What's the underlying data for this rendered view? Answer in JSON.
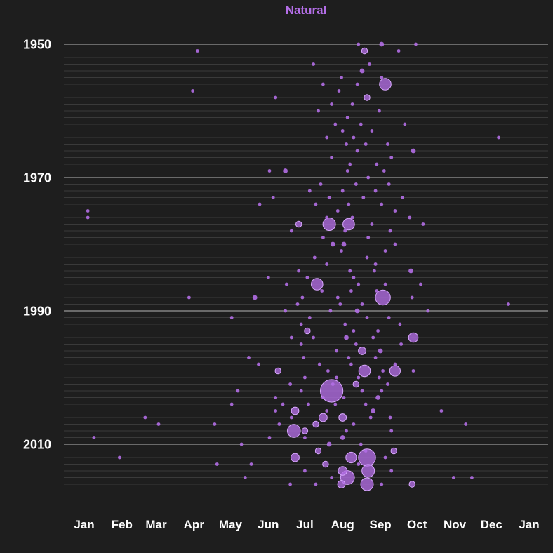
{
  "chart_data": {
    "type": "scatter",
    "title": "Natural",
    "xlabel": "",
    "ylabel": "",
    "x_axis": {
      "type": "day_of_year",
      "tick_labels": [
        "Jan",
        "Feb",
        "Mar",
        "Apr",
        "May",
        "Jun",
        "Jul",
        "Aug",
        "Sep",
        "Oct",
        "Nov",
        "Dec",
        "Jan"
      ],
      "range": [
        "Jan 1",
        "Jan 1 (next year)"
      ]
    },
    "y_axis": {
      "type": "year",
      "tick_labels": [
        "1950",
        "1970",
        "1990",
        "2010"
      ],
      "range": [
        1950,
        2016
      ],
      "direction": "down"
    },
    "grid": "horizontal line per year, heavier at labeled years",
    "marker_color": "#b36ee6",
    "size_encoding": "circle area",
    "points": [
      {
        "year": 1950,
        "date": "Aug 14",
        "size": 1
      },
      {
        "year": 1950,
        "date": "Sep 2",
        "size": 2
      },
      {
        "year": 1950,
        "date": "Sep 30",
        "size": 1
      },
      {
        "year": 1951,
        "date": "Apr 4",
        "size": 1
      },
      {
        "year": 1951,
        "date": "Aug 19",
        "size": 3
      },
      {
        "year": 1951,
        "date": "Sep 16",
        "size": 1
      },
      {
        "year": 1953,
        "date": "Jul 8",
        "size": 1
      },
      {
        "year": 1953,
        "date": "Aug 23",
        "size": 1
      },
      {
        "year": 1954,
        "date": "Aug 17",
        "size": 2
      },
      {
        "year": 1955,
        "date": "Jul 31",
        "size": 1
      },
      {
        "year": 1955,
        "date": "Sep 2",
        "size": 1
      },
      {
        "year": 1956,
        "date": "Jul 16",
        "size": 1
      },
      {
        "year": 1956,
        "date": "Aug 13",
        "size": 1
      },
      {
        "year": 1956,
        "date": "Sep 5",
        "size": 12
      },
      {
        "year": 1957,
        "date": "Mar 31",
        "size": 1
      },
      {
        "year": 1957,
        "date": "Jul 29",
        "size": 1
      },
      {
        "year": 1958,
        "date": "Jun 7",
        "size": 1
      },
      {
        "year": 1958,
        "date": "Aug 21",
        "size": 3
      },
      {
        "year": 1959,
        "date": "Jul 23",
        "size": 1
      },
      {
        "year": 1959,
        "date": "Aug 9",
        "size": 1
      },
      {
        "year": 1960,
        "date": "Jul 12",
        "size": 1
      },
      {
        "year": 1960,
        "date": "Aug 31",
        "size": 1
      },
      {
        "year": 1961,
        "date": "Aug 5",
        "size": 1
      },
      {
        "year": 1962,
        "date": "Jul 26",
        "size": 1
      },
      {
        "year": 1962,
        "date": "Aug 16",
        "size": 1
      },
      {
        "year": 1962,
        "date": "Sep 21",
        "size": 1
      },
      {
        "year": 1963,
        "date": "Aug 1",
        "size": 1
      },
      {
        "year": 1963,
        "date": "Aug 25",
        "size": 1
      },
      {
        "year": 1964,
        "date": "Jul 19",
        "size": 1
      },
      {
        "year": 1964,
        "date": "Aug 10",
        "size": 1
      },
      {
        "year": 1964,
        "date": "Dec 7",
        "size": 1
      },
      {
        "year": 1965,
        "date": "Aug 4",
        "size": 1
      },
      {
        "year": 1965,
        "date": "Aug 20",
        "size": 1
      },
      {
        "year": 1965,
        "date": "Sep 7",
        "size": 1
      },
      {
        "year": 1966,
        "date": "Aug 13",
        "size": 1
      },
      {
        "year": 1966,
        "date": "Sep 28",
        "size": 2
      },
      {
        "year": 1967,
        "date": "Jul 23",
        "size": 1
      },
      {
        "year": 1967,
        "date": "Sep 10",
        "size": 1
      },
      {
        "year": 1968,
        "date": "Aug 7",
        "size": 1
      },
      {
        "year": 1968,
        "date": "Aug 29",
        "size": 1
      },
      {
        "year": 1969,
        "date": "Jun 2",
        "size": 1
      },
      {
        "year": 1969,
        "date": "Jun 15",
        "size": 2
      },
      {
        "year": 1969,
        "date": "Aug 5",
        "size": 1
      },
      {
        "year": 1969,
        "date": "Sep 4",
        "size": 1
      },
      {
        "year": 1970,
        "date": "Aug 22",
        "size": 1
      },
      {
        "year": 1971,
        "date": "Jul 14",
        "size": 1
      },
      {
        "year": 1971,
        "date": "Aug 12",
        "size": 1
      },
      {
        "year": 1971,
        "date": "Sep 8",
        "size": 1
      },
      {
        "year": 1972,
        "date": "Jul 5",
        "size": 1
      },
      {
        "year": 1972,
        "date": "Aug 1",
        "size": 1
      },
      {
        "year": 1972,
        "date": "Aug 28",
        "size": 1
      },
      {
        "year": 1973,
        "date": "Jun 5",
        "size": 1
      },
      {
        "year": 1973,
        "date": "Jul 21",
        "size": 1
      },
      {
        "year": 1973,
        "date": "Aug 18",
        "size": 1
      },
      {
        "year": 1973,
        "date": "Sep 19",
        "size": 1
      },
      {
        "year": 1974,
        "date": "May 25",
        "size": 1
      },
      {
        "year": 1974,
        "date": "Jul 10",
        "size": 1
      },
      {
        "year": 1974,
        "date": "Aug 6",
        "size": 1
      },
      {
        "year": 1974,
        "date": "Sep 2",
        "size": 1
      },
      {
        "year": 1975,
        "date": "Jan 4",
        "size": 1
      },
      {
        "year": 1975,
        "date": "Jul 28",
        "size": 1
      },
      {
        "year": 1975,
        "date": "Sep 13",
        "size": 1
      },
      {
        "year": 1976,
        "date": "Jan 4",
        "size": 1
      },
      {
        "year": 1976,
        "date": "Jul 19",
        "size": 1
      },
      {
        "year": 1976,
        "date": "Aug 9",
        "size": 1
      },
      {
        "year": 1976,
        "date": "Sep 25",
        "size": 1
      },
      {
        "year": 1977,
        "date": "Jun 26",
        "size": 3
      },
      {
        "year": 1977,
        "date": "Jul 21",
        "size": 14
      },
      {
        "year": 1977,
        "date": "Aug 6",
        "size": 12
      },
      {
        "year": 1977,
        "date": "Aug 25",
        "size": 1
      },
      {
        "year": 1977,
        "date": "Oct 6",
        "size": 1
      },
      {
        "year": 1978,
        "date": "Jun 20",
        "size": 1
      },
      {
        "year": 1978,
        "date": "Aug 3",
        "size": 1
      },
      {
        "year": 1978,
        "date": "Sep 9",
        "size": 1
      },
      {
        "year": 1979,
        "date": "Jul 16",
        "size": 1
      },
      {
        "year": 1979,
        "date": "Aug 22",
        "size": 1
      },
      {
        "year": 1980,
        "date": "Jul 24",
        "size": 2
      },
      {
        "year": 1980,
        "date": "Aug 2",
        "size": 2
      },
      {
        "year": 1980,
        "date": "Sep 13",
        "size": 1
      },
      {
        "year": 1981,
        "date": "Jul 31",
        "size": 1
      },
      {
        "year": 1981,
        "date": "Sep 5",
        "size": 1
      },
      {
        "year": 1982,
        "date": "Jul 9",
        "size": 1
      },
      {
        "year": 1982,
        "date": "Aug 21",
        "size": 1
      },
      {
        "year": 1983,
        "date": "Jul 19",
        "size": 1
      },
      {
        "year": 1983,
        "date": "Aug 28",
        "size": 1
      },
      {
        "year": 1984,
        "date": "Jun 26",
        "size": 1
      },
      {
        "year": 1984,
        "date": "Aug 7",
        "size": 1
      },
      {
        "year": 1984,
        "date": "Aug 27",
        "size": 1
      },
      {
        "year": 1984,
        "date": "Sep 26",
        "size": 2
      },
      {
        "year": 1985,
        "date": "Jun 1",
        "size": 1
      },
      {
        "year": 1985,
        "date": "Jul 3",
        "size": 1
      },
      {
        "year": 1985,
        "date": "Aug 10",
        "size": 1
      },
      {
        "year": 1986,
        "date": "Jun 16",
        "size": 1
      },
      {
        "year": 1986,
        "date": "Jul 11",
        "size": 12
      },
      {
        "year": 1986,
        "date": "Aug 14",
        "size": 1
      },
      {
        "year": 1986,
        "date": "Sep 5",
        "size": 1
      },
      {
        "year": 1986,
        "date": "Oct 4",
        "size": 1
      },
      {
        "year": 1987,
        "date": "Jul 15",
        "size": 1
      },
      {
        "year": 1987,
        "date": "Aug 8",
        "size": 1
      },
      {
        "year": 1987,
        "date": "Aug 29",
        "size": 1
      },
      {
        "year": 1988,
        "date": "Mar 28",
        "size": 1
      },
      {
        "year": 1988,
        "date": "May 21",
        "size": 2
      },
      {
        "year": 1988,
        "date": "Jun 29",
        "size": 1
      },
      {
        "year": 1988,
        "date": "Jul 28",
        "size": 1
      },
      {
        "year": 1988,
        "date": "Sep 3",
        "size": 20
      },
      {
        "year": 1988,
        "date": "Sep 27",
        "size": 1
      },
      {
        "year": 1989,
        "date": "Jun 25",
        "size": 1
      },
      {
        "year": 1989,
        "date": "Jul 30",
        "size": 1
      },
      {
        "year": 1989,
        "date": "Aug 17",
        "size": 1
      },
      {
        "year": 1989,
        "date": "Dec 15",
        "size": 1
      },
      {
        "year": 1990,
        "date": "Jun 15",
        "size": 1
      },
      {
        "year": 1990,
        "date": "Jul 22",
        "size": 1
      },
      {
        "year": 1990,
        "date": "Aug 13",
        "size": 2
      },
      {
        "year": 1990,
        "date": "Oct 10",
        "size": 1
      },
      {
        "year": 1991,
        "date": "May 2",
        "size": 1
      },
      {
        "year": 1991,
        "date": "Jul 5",
        "size": 1
      },
      {
        "year": 1991,
        "date": "Aug 21",
        "size": 1
      },
      {
        "year": 1991,
        "date": "Sep 8",
        "size": 1
      },
      {
        "year": 1992,
        "date": "Jun 28",
        "size": 1
      },
      {
        "year": 1992,
        "date": "Aug 3",
        "size": 1
      },
      {
        "year": 1992,
        "date": "Sep 17",
        "size": 1
      },
      {
        "year": 1993,
        "date": "Jul 3",
        "size": 3
      },
      {
        "year": 1993,
        "date": "Aug 10",
        "size": 1
      },
      {
        "year": 1993,
        "date": "Aug 30",
        "size": 1
      },
      {
        "year": 1994,
        "date": "Jun 20",
        "size": 1
      },
      {
        "year": 1994,
        "date": "Jul 8",
        "size": 1
      },
      {
        "year": 1994,
        "date": "Aug 4",
        "size": 2
      },
      {
        "year": 1994,
        "date": "Aug 26",
        "size": 1
      },
      {
        "year": 1994,
        "date": "Sep 28",
        "size": 8
      },
      {
        "year": 1995,
        "date": "Jun 28",
        "size": 1
      },
      {
        "year": 1995,
        "date": "Aug 12",
        "size": 1
      },
      {
        "year": 1995,
        "date": "Sep 18",
        "size": 1
      },
      {
        "year": 1996,
        "date": "Jul 27",
        "size": 1
      },
      {
        "year": 1996,
        "date": "Aug 17",
        "size": 5
      },
      {
        "year": 1996,
        "date": "Sep 1",
        "size": 2
      },
      {
        "year": 1997,
        "date": "May 16",
        "size": 1
      },
      {
        "year": 1997,
        "date": "Jun 30",
        "size": 1
      },
      {
        "year": 1997,
        "date": "Aug 6",
        "size": 1
      },
      {
        "year": 1997,
        "date": "Aug 28",
        "size": 1
      },
      {
        "year": 1998,
        "date": "May 24",
        "size": 1
      },
      {
        "year": 1998,
        "date": "Jul 13",
        "size": 1
      },
      {
        "year": 1998,
        "date": "Aug 8",
        "size": 1
      },
      {
        "year": 1998,
        "date": "Sep 13",
        "size": 1
      },
      {
        "year": 1999,
        "date": "Jun 9",
        "size": 3
      },
      {
        "year": 1999,
        "date": "Jul 20",
        "size": 1
      },
      {
        "year": 1999,
        "date": "Aug 19",
        "size": 12
      },
      {
        "year": 1999,
        "date": "Sep 3",
        "size": 1
      },
      {
        "year": 1999,
        "date": "Sep 13",
        "size": 10
      },
      {
        "year": 1999,
        "date": "Sep 28",
        "size": 1
      },
      {
        "year": 2000,
        "date": "Jul 1",
        "size": 1
      },
      {
        "year": 2000,
        "date": "Jul 27",
        "size": 1
      },
      {
        "year": 2000,
        "date": "Aug 14",
        "size": 1
      },
      {
        "year": 2000,
        "date": "Aug 31",
        "size": 1
      },
      {
        "year": 2001,
        "date": "Jun 19",
        "size": 1
      },
      {
        "year": 2001,
        "date": "Jul 24",
        "size": 1
      },
      {
        "year": 2001,
        "date": "Aug 12",
        "size": 3
      },
      {
        "year": 2001,
        "date": "Sep 7",
        "size": 1
      },
      {
        "year": 2002,
        "date": "May 7",
        "size": 1
      },
      {
        "year": 2002,
        "date": "Jun 28",
        "size": 1
      },
      {
        "year": 2002,
        "date": "Jul 23",
        "size": 45
      },
      {
        "year": 2002,
        "date": "Aug 17",
        "size": 1
      },
      {
        "year": 2002,
        "date": "Sep 2",
        "size": 1
      },
      {
        "year": 2003,
        "date": "Jun 7",
        "size": 1
      },
      {
        "year": 2003,
        "date": "Jul 16",
        "size": 1
      },
      {
        "year": 2003,
        "date": "Aug 2",
        "size": 1
      },
      {
        "year": 2003,
        "date": "Aug 30",
        "size": 2
      },
      {
        "year": 2004,
        "date": "May 2",
        "size": 1
      },
      {
        "year": 2004,
        "date": "Jun 13",
        "size": 1
      },
      {
        "year": 2004,
        "date": "Jul 4",
        "size": 1
      },
      {
        "year": 2004,
        "date": "Jul 26",
        "size": 1
      },
      {
        "year": 2004,
        "date": "Aug 20",
        "size": 1
      },
      {
        "year": 2005,
        "date": "Jun 7",
        "size": 1
      },
      {
        "year": 2005,
        "date": "Jun 23",
        "size": 5
      },
      {
        "year": 2005,
        "date": "Jul 19",
        "size": 1
      },
      {
        "year": 2005,
        "date": "Aug 26",
        "size": 2
      },
      {
        "year": 2005,
        "date": "Oct 21",
        "size": 1
      },
      {
        "year": 2006,
        "date": "Feb 20",
        "size": 1
      },
      {
        "year": 2006,
        "date": "Jun 20",
        "size": 1
      },
      {
        "year": 2006,
        "date": "Jul 16",
        "size": 6
      },
      {
        "year": 2006,
        "date": "Aug 1",
        "size": 5
      },
      {
        "year": 2006,
        "date": "Aug 24",
        "size": 1
      },
      {
        "year": 2006,
        "date": "Sep 9",
        "size": 1
      },
      {
        "year": 2007,
        "date": "Mar 3",
        "size": 1
      },
      {
        "year": 2007,
        "date": "Apr 18",
        "size": 1
      },
      {
        "year": 2007,
        "date": "Jun 10",
        "size": 1
      },
      {
        "year": 2007,
        "date": "Jul 10",
        "size": 3
      },
      {
        "year": 2007,
        "date": "Aug 10",
        "size": 1
      },
      {
        "year": 2007,
        "date": "Nov 10",
        "size": 1
      },
      {
        "year": 2008,
        "date": "Jun 22",
        "size": 15
      },
      {
        "year": 2008,
        "date": "Jul 1",
        "size": 3
      },
      {
        "year": 2008,
        "date": "Aug 4",
        "size": 1
      },
      {
        "year": 2008,
        "date": "Sep 10",
        "size": 1
      },
      {
        "year": 2009,
        "date": "Jan 9",
        "size": 1
      },
      {
        "year": 2009,
        "date": "Jun 2",
        "size": 1
      },
      {
        "year": 2009,
        "date": "Jul 1",
        "size": 1
      },
      {
        "year": 2009,
        "date": "Aug 1",
        "size": 2
      },
      {
        "year": 2010,
        "date": "May 10",
        "size": 1
      },
      {
        "year": 2010,
        "date": "Jul 21",
        "size": 2
      },
      {
        "year": 2010,
        "date": "Aug 16",
        "size": 1
      },
      {
        "year": 2011,
        "date": "Jul 12",
        "size": 3
      },
      {
        "year": 2011,
        "date": "Aug 20",
        "size": 1
      },
      {
        "year": 2011,
        "date": "Sep 12",
        "size": 3
      },
      {
        "year": 2012,
        "date": "Jan 30",
        "size": 1
      },
      {
        "year": 2012,
        "date": "Jun 23",
        "size": 6
      },
      {
        "year": 2012,
        "date": "Aug 8",
        "size": 10
      },
      {
        "year": 2012,
        "date": "Aug 21",
        "size": 26
      },
      {
        "year": 2012,
        "date": "Sep 5",
        "size": 1
      },
      {
        "year": 2013,
        "date": "Apr 20",
        "size": 1
      },
      {
        "year": 2013,
        "date": "May 18",
        "size": 1
      },
      {
        "year": 2013,
        "date": "Jul 18",
        "size": 3
      },
      {
        "year": 2013,
        "date": "Aug 14",
        "size": 1
      },
      {
        "year": 2014,
        "date": "Jul 1",
        "size": 1
      },
      {
        "year": 2014,
        "date": "Aug 1",
        "size": 7
      },
      {
        "year": 2014,
        "date": "Aug 22",
        "size": 14
      },
      {
        "year": 2014,
        "date": "Sep 10",
        "size": 1
      },
      {
        "year": 2015,
        "date": "May 13",
        "size": 1
      },
      {
        "year": 2015,
        "date": "Jul 23",
        "size": 1
      },
      {
        "year": 2015,
        "date": "Aug 5",
        "size": 17
      },
      {
        "year": 2015,
        "date": "Oct 31",
        "size": 1
      },
      {
        "year": 2015,
        "date": "Nov 15",
        "size": 1
      },
      {
        "year": 2016,
        "date": "Jun 19",
        "size": 1
      },
      {
        "year": 2016,
        "date": "Jul 10",
        "size": 1
      },
      {
        "year": 2016,
        "date": "Jul 31",
        "size": 5
      },
      {
        "year": 2016,
        "date": "Aug 21",
        "size": 14
      },
      {
        "year": 2016,
        "date": "Sep 2",
        "size": 1
      },
      {
        "year": 2016,
        "date": "Sep 27",
        "size": 3
      }
    ]
  }
}
